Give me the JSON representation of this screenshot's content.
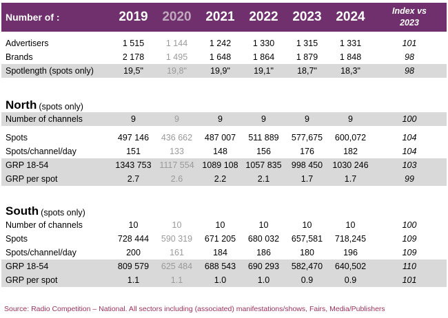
{
  "header": {
    "label": "Number of :",
    "years": [
      "2019",
      "2020",
      "2021",
      "2022",
      "2023",
      "2024"
    ],
    "index_line1": "Index vs",
    "index_line2": "2023"
  },
  "top_rows": [
    {
      "label": "Advertisers",
      "values": [
        "1 515",
        "1 144",
        "1 242",
        "1 330",
        "1 315",
        "1 331"
      ],
      "index": "101"
    },
    {
      "label": "Brands",
      "values": [
        "2 178",
        "1 495",
        "1 648",
        "1 864",
        "1 879",
        "1 848"
      ],
      "index": "98"
    },
    {
      "label": "Spotlength (spots only)",
      "values": [
        "19,5\"",
        "19,8\"",
        "19,9\"",
        "19,1\"",
        "18,7\"",
        "18,3\""
      ],
      "index": "98"
    }
  ],
  "north": {
    "title": "North",
    "subtitle": "(spots only)",
    "rows": [
      {
        "label": "Number of channels",
        "values": [
          "9",
          "9",
          "9",
          "9",
          "9",
          "9"
        ],
        "index": "100"
      },
      {
        "label": "Spots",
        "values": [
          "497 146",
          "436 662",
          "487 007",
          "511 889",
          "577,675",
          "600,072"
        ],
        "index": "104"
      },
      {
        "label": "Spots/channel/day",
        "values": [
          "151",
          "133",
          "148",
          "156",
          "176",
          "182"
        ],
        "index": "104"
      },
      {
        "label": "GRP 18-54",
        "values": [
          "1343 753",
          "1117 554",
          "1089 108",
          "1057 835",
          "998 450",
          "1030 246"
        ],
        "index": "103"
      },
      {
        "label": "GRP per spot",
        "values": [
          "2.7",
          "2.6",
          "2.2",
          "2.1",
          "1.7",
          "1.7"
        ],
        "index": "99"
      }
    ]
  },
  "south": {
    "title": "South",
    "subtitle": "(spots only)",
    "rows": [
      {
        "label": "Number of channels",
        "values": [
          "10",
          "10",
          "10",
          "10",
          "10",
          "10"
        ],
        "index": "100"
      },
      {
        "label": "Spots",
        "values": [
          "728 444",
          "590 319",
          "671 205",
          "680 032",
          "657,581",
          "718,245"
        ],
        "index": "109"
      },
      {
        "label": "Spots/channel/day",
        "values": [
          "200",
          "161",
          "184",
          "186",
          "180",
          "196"
        ],
        "index": "109"
      },
      {
        "label": "GRP 18-54",
        "values": [
          "809 579",
          "625 484",
          "688 543",
          "690 293",
          "582,470",
          "640,502"
        ],
        "index": "110"
      },
      {
        "label": "GRP per spot",
        "values": [
          "1.1",
          "1.1",
          "1.0",
          "1.0",
          "0.9",
          "0.9"
        ],
        "index": "101"
      }
    ]
  },
  "source": "Source: Radio Competition – National. All sectors including (associated) manifestations/shows, Fairs, Media/Publishers"
}
